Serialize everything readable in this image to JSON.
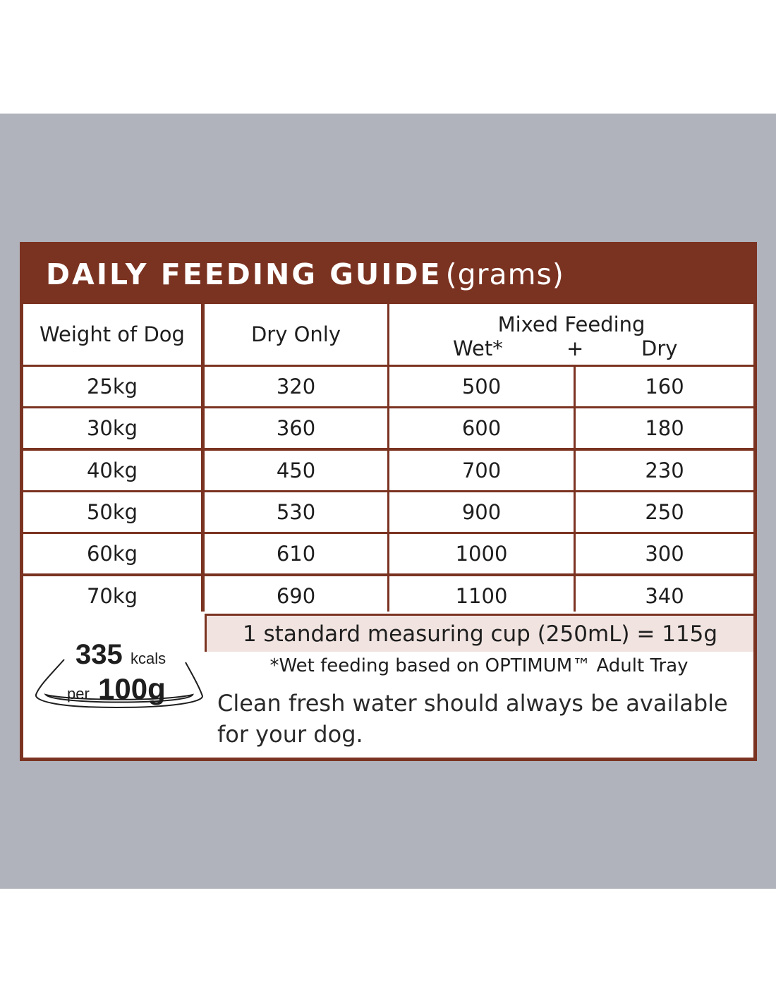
{
  "title": "DAILY FEEDING GUIDE",
  "title_unit": "(grams)",
  "columns": {
    "weight": "Weight of Dog",
    "dry_only": "Dry Only",
    "mixed": "Mixed Feeding",
    "mixed_wet": "Wet*",
    "mixed_plus": "+",
    "mixed_dry": "Dry"
  },
  "rows": [
    {
      "weight": "25kg",
      "dry_only": "320",
      "wet": "500",
      "dry": "160"
    },
    {
      "weight": "30kg",
      "dry_only": "360",
      "wet": "600",
      "dry": "180"
    },
    {
      "weight": "40kg",
      "dry_only": "450",
      "wet": "700",
      "dry": "230"
    },
    {
      "weight": "50kg",
      "dry_only": "530",
      "wet": "900",
      "dry": "250"
    },
    {
      "weight": "60kg",
      "dry_only": "610",
      "wet": "1000",
      "dry": "300"
    },
    {
      "weight": "70kg",
      "dry_only": "690",
      "wet": "1100",
      "dry": "340"
    }
  ],
  "cup_note": "1 standard measuring cup (250mL) = 115g",
  "wet_note": "*Wet feeding based on OPTIMUM™ Adult Tray",
  "water_note": "Clean fresh water should always be available for your dog.",
  "kcal": {
    "value": "335",
    "unit": "kcals",
    "per_label": "per",
    "per_amount": "100g"
  },
  "colors": {
    "background_band": "#b1b3bc",
    "panel_brown": "#7b3321",
    "cup_band": "#f1e4e0",
    "text": "#1e1e1e"
  }
}
